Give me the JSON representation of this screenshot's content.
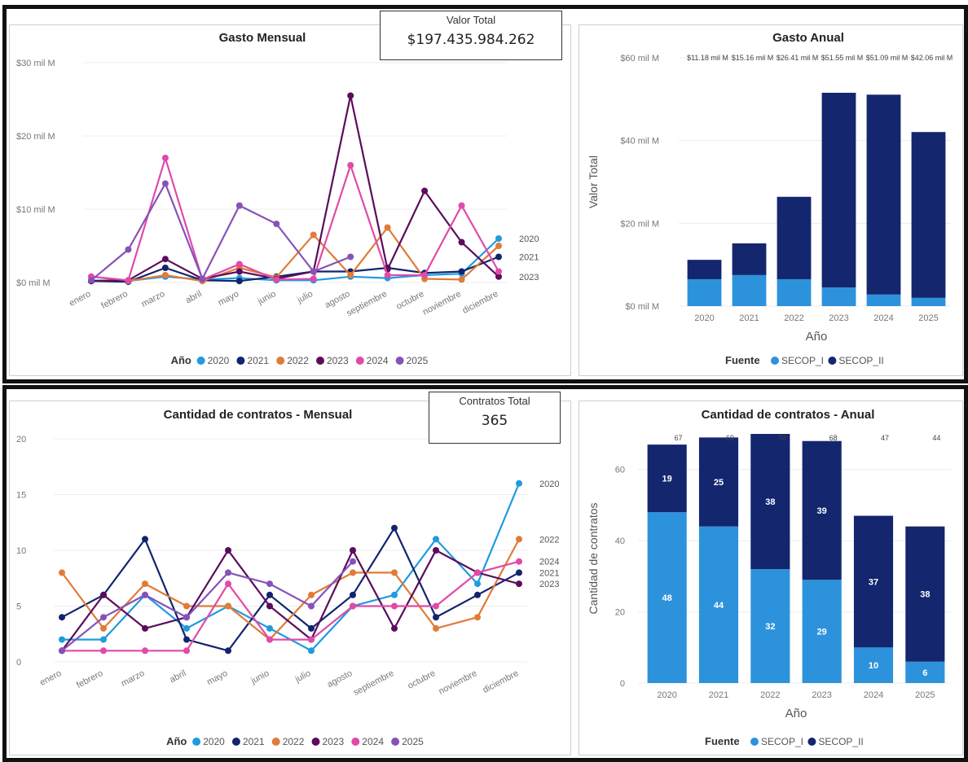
{
  "colors": {
    "y2020": "#1f9bde",
    "y2021": "#12246e",
    "y2022": "#e07b39",
    "y2023": "#5a0d5c",
    "y2024": "#e04aa8",
    "y2025": "#8652b8",
    "secop_i": "#2d92dc",
    "secop_ii": "#13266e",
    "logo": [
      "#f2d21d",
      "#6d1f5a",
      "#2a3b8f"
    ]
  },
  "cards": {
    "valor_total": {
      "title": "Valor Total",
      "value": "$197.435.984.262"
    },
    "contratos_total": {
      "title": "Contratos Total",
      "value": "365"
    }
  },
  "chart_data": [
    {
      "id": "gasto_mensual",
      "type": "line",
      "title": "Gasto Mensual",
      "xlabel": "",
      "ylabel": "",
      "x": [
        "enero",
        "febrero",
        "marzo",
        "abril",
        "mayo",
        "junio",
        "julio",
        "agosto",
        "septiembre",
        "octubre",
        "noviembre",
        "diciembre"
      ],
      "yticks": [
        0,
        10,
        20,
        30
      ],
      "ytick_labels": [
        "$0 mil M",
        "$10 mil M",
        "$20 mil M",
        "$30 mil M"
      ],
      "ylim": [
        0,
        30
      ],
      "units": "mil M",
      "legend_title": "Año",
      "legend_position": "bottom",
      "series": [
        {
          "name": "2020",
          "values": [
            0.3,
            0.2,
            0.8,
            0.4,
            0.6,
            0.3,
            0.3,
            0.8,
            0.6,
            1.0,
            1.2,
            6.0
          ]
        },
        {
          "name": "2021",
          "values": [
            0.2,
            0.1,
            2.0,
            0.3,
            0.2,
            0.8,
            1.5,
            1.5,
            2.0,
            1.3,
            1.5,
            3.5
          ]
        },
        {
          "name": "2022",
          "values": [
            0.8,
            0.2,
            1.0,
            0.2,
            2.0,
            0.7,
            6.5,
            1.0,
            7.5,
            0.5,
            0.4,
            5.0
          ]
        },
        {
          "name": "2023",
          "values": [
            0.2,
            0.3,
            3.2,
            0.5,
            1.5,
            0.5,
            1.5,
            25.5,
            1.8,
            12.5,
            5.5,
            0.8
          ]
        },
        {
          "name": "2024",
          "values": [
            0.8,
            0.3,
            17.0,
            0.4,
            2.5,
            0.4,
            0.5,
            16.0,
            1.0,
            1.0,
            10.5,
            1.5
          ]
        },
        {
          "name": "2025",
          "values": [
            0.3,
            4.5,
            13.5,
            0.5,
            10.5,
            8.0,
            1.5,
            3.5,
            null,
            null,
            null,
            null
          ]
        }
      ],
      "end_labels": [
        "2020",
        "2021",
        "2023"
      ]
    },
    {
      "id": "gasto_anual",
      "type": "bar",
      "stacked": true,
      "title": "Gasto Anual",
      "xlabel": "Año",
      "ylabel": "Valor Total",
      "categories": [
        "2020",
        "2021",
        "2022",
        "2023",
        "2024",
        "2025"
      ],
      "ylim": [
        0,
        60
      ],
      "yticks": [
        0,
        20,
        40,
        60
      ],
      "ytick_labels": [
        "$0 mil M",
        "$20 mil M",
        "$40 mil M",
        "$60 mil M"
      ],
      "total_labels": [
        "$11.18 mil M",
        "$15.16 mil M",
        "$26.41 mil M",
        "$51.55 mil M",
        "$51.09 mil M",
        "$42.06 mil M"
      ],
      "legend_title": "Fuente",
      "legend_position": "bottom",
      "series": [
        {
          "name": "SECOP_I",
          "values": [
            6.5,
            7.5,
            6.5,
            4.5,
            2.8,
            2.0
          ]
        },
        {
          "name": "SECOP_II",
          "values": [
            4.68,
            7.66,
            19.91,
            47.05,
            48.29,
            40.06
          ]
        }
      ]
    },
    {
      "id": "contratos_mensual",
      "type": "line",
      "title": "Cantidad de contratos - Mensual",
      "xlabel": "",
      "ylabel": "",
      "x": [
        "enero",
        "febrero",
        "marzo",
        "abril",
        "mayo",
        "junio",
        "julio",
        "agosto",
        "septiembre",
        "octubre",
        "noviembre",
        "diciembre"
      ],
      "yticks": [
        0,
        5,
        10,
        15,
        20
      ],
      "ytick_labels": [
        "0",
        "5",
        "10",
        "15",
        "20"
      ],
      "ylim": [
        0,
        20
      ],
      "legend_title": "Año",
      "legend_position": "bottom",
      "series": [
        {
          "name": "2020",
          "values": [
            2,
            2,
            6,
            3,
            5,
            3,
            1,
            5,
            6,
            11,
            7,
            16
          ]
        },
        {
          "name": "2021",
          "values": [
            4,
            6,
            11,
            2,
            1,
            6,
            3,
            6,
            12,
            4,
            6,
            8
          ]
        },
        {
          "name": "2022",
          "values": [
            8,
            3,
            7,
            5,
            5,
            2,
            6,
            8,
            8,
            3,
            4,
            11
          ]
        },
        {
          "name": "2023",
          "values": [
            1,
            6,
            3,
            4,
            10,
            5,
            2,
            10,
            3,
            10,
            8,
            7
          ]
        },
        {
          "name": "2024",
          "values": [
            1,
            1,
            1,
            1,
            7,
            2,
            2,
            5,
            5,
            5,
            8,
            9
          ]
        },
        {
          "name": "2025",
          "values": [
            1,
            4,
            6,
            4,
            8,
            7,
            5,
            9,
            null,
            null,
            null,
            null
          ]
        }
      ],
      "end_labels": [
        "2020",
        "2022",
        "2024",
        "2021",
        "2023"
      ]
    },
    {
      "id": "contratos_anual",
      "type": "bar",
      "stacked": true,
      "title": "Cantidad de contratos - Anual",
      "xlabel": "Año",
      "ylabel": "Cantidad de contratos",
      "categories": [
        "2020",
        "2021",
        "2022",
        "2023",
        "2024",
        "2025"
      ],
      "ylim": [
        0,
        70
      ],
      "yticks": [
        0,
        20,
        40,
        60
      ],
      "ytick_labels": [
        "0",
        "20",
        "40",
        "60"
      ],
      "total_labels": [
        "67",
        "69",
        "70",
        "68",
        "47",
        "44"
      ],
      "legend_title": "Fuente",
      "legend_position": "bottom",
      "series": [
        {
          "name": "SECOP_I",
          "values": [
            48,
            44,
            32,
            29,
            10,
            6
          ]
        },
        {
          "name": "SECOP_II",
          "values": [
            19,
            25,
            38,
            39,
            37,
            38
          ]
        }
      ]
    }
  ]
}
